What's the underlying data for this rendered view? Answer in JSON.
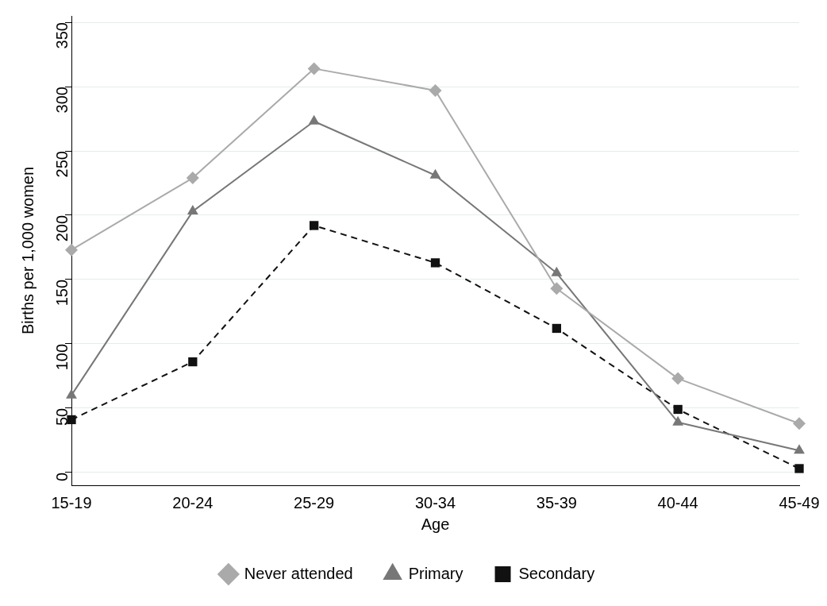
{
  "chart_data": {
    "type": "line",
    "xlabel": "Age",
    "ylabel": "Births per 1,000 women",
    "categories": [
      "15-19",
      "20-24",
      "25-29",
      "30-34",
      "35-39",
      "40-44",
      "45-49"
    ],
    "series": [
      {
        "name": "Never attended",
        "color": "#aaaaaa",
        "marker": "diamond",
        "line_style": "solid",
        "values": [
          173,
          229,
          314,
          297,
          143,
          73,
          38
        ]
      },
      {
        "name": "Primary",
        "color": "#777777",
        "marker": "triangle",
        "line_style": "solid",
        "values": [
          60,
          203,
          273,
          231,
          155,
          39,
          17
        ]
      },
      {
        "name": "Secondary",
        "color": "#111111",
        "marker": "square",
        "line_style": "dashed",
        "values": [
          41,
          86,
          192,
          163,
          112,
          49,
          3
        ]
      }
    ],
    "ylim": [
      -10,
      355
    ],
    "yticks": [
      0,
      50,
      100,
      150,
      200,
      250,
      300,
      350
    ],
    "grid": "y",
    "legend": "bottom"
  }
}
